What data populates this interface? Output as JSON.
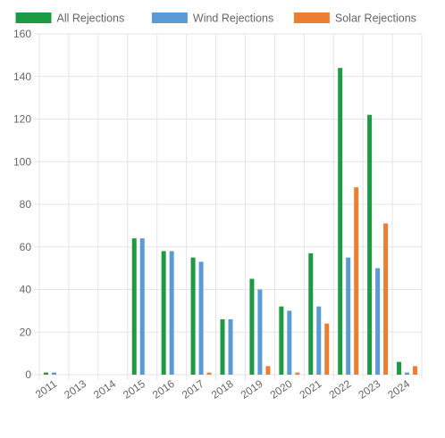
{
  "chart_data": {
    "type": "bar",
    "categories": [
      "2011",
      "2013",
      "2014",
      "2015",
      "2016",
      "2017",
      "2018",
      "2019",
      "2020",
      "2021",
      "2022",
      "2023",
      "2024"
    ],
    "series": [
      {
        "name": "All Rejections",
        "color": "#1e9a44",
        "values": [
          1,
          0,
          0,
          64,
          58,
          55,
          26,
          45,
          32,
          57,
          144,
          122,
          6
        ]
      },
      {
        "name": "Wind Rejections",
        "color": "#5b9bd5",
        "values": [
          1,
          0,
          0,
          64,
          58,
          53,
          26,
          40,
          30,
          32,
          55,
          50,
          1
        ]
      },
      {
        "name": "Solar Rejections",
        "color": "#ed7d31",
        "values": [
          0,
          0,
          0,
          0,
          0,
          1,
          0,
          4,
          1,
          24,
          88,
          71,
          4
        ]
      }
    ],
    "ylim": [
      0,
      160
    ],
    "yticks": [
      0,
      20,
      40,
      60,
      80,
      100,
      120,
      140,
      160
    ],
    "grid": true,
    "legend": "top"
  }
}
